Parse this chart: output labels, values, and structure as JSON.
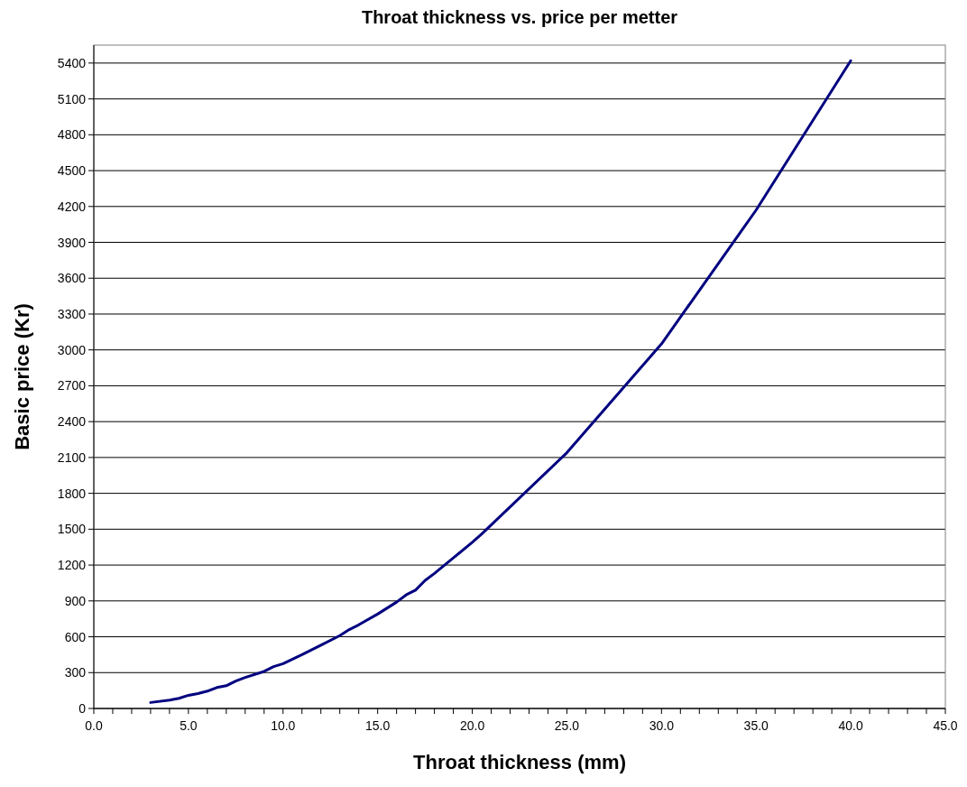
{
  "chart_data": {
    "type": "line",
    "title": "Throat thickness vs. price per metter",
    "xlabel": "Throat thickness (mm)",
    "ylabel": "Basic price (Kr)",
    "x": [
      3,
      4,
      4.5,
      5,
      5.5,
      6,
      6.5,
      7,
      7.5,
      8,
      9,
      9.5,
      10,
      11,
      12,
      13,
      13.5,
      14,
      15,
      16,
      16.5,
      17,
      17.5,
      18,
      19,
      20,
      20.5,
      25,
      30,
      35,
      40
    ],
    "series": [
      {
        "color": "#000080",
        "values": [
          50,
          70,
          85,
          110,
          125,
          145,
          175,
          190,
          230,
          260,
          310,
          350,
          375,
          450,
          530,
          610,
          660,
          700,
          790,
          890,
          950,
          990,
          1070,
          1130,
          1260,
          1390,
          1460,
          2140,
          3050,
          4170,
          5420
        ]
      }
    ],
    "xlim": [
      0,
      45
    ],
    "xticks": [
      {
        "value": 0,
        "label": "0.0"
      },
      {
        "value": 1,
        "label": null
      },
      {
        "value": 2,
        "label": null
      },
      {
        "value": 3,
        "label": null
      },
      {
        "value": 4,
        "label": null
      },
      {
        "value": 5,
        "label": "5.0"
      },
      {
        "value": 6,
        "label": null
      },
      {
        "value": 7,
        "label": null
      },
      {
        "value": 8,
        "label": null
      },
      {
        "value": 9,
        "label": null
      },
      {
        "value": 10,
        "label": "10.0"
      },
      {
        "value": 11,
        "label": null
      },
      {
        "value": 12,
        "label": null
      },
      {
        "value": 13,
        "label": null
      },
      {
        "value": 14,
        "label": null
      },
      {
        "value": 15,
        "label": "15.0"
      },
      {
        "value": 16,
        "label": null
      },
      {
        "value": 17,
        "label": null
      },
      {
        "value": 18,
        "label": null
      },
      {
        "value": 19,
        "label": null
      },
      {
        "value": 20,
        "label": "20.0"
      },
      {
        "value": 21,
        "label": null
      },
      {
        "value": 22,
        "label": null
      },
      {
        "value": 23,
        "label": null
      },
      {
        "value": 24,
        "label": null
      },
      {
        "value": 25,
        "label": "25.0"
      },
      {
        "value": 26,
        "label": null
      },
      {
        "value": 27,
        "label": null
      },
      {
        "value": 28,
        "label": null
      },
      {
        "value": 29,
        "label": null
      },
      {
        "value": 30,
        "label": "30.0"
      },
      {
        "value": 31,
        "label": null
      },
      {
        "value": 32,
        "label": null
      },
      {
        "value": 33,
        "label": null
      },
      {
        "value": 34,
        "label": null
      },
      {
        "value": 35,
        "label": "35.0"
      },
      {
        "value": 36,
        "label": null
      },
      {
        "value": 37,
        "label": null
      },
      {
        "value": 38,
        "label": null
      },
      {
        "value": 39,
        "label": null
      },
      {
        "value": 40,
        "label": "40.0"
      },
      {
        "value": 41,
        "label": null
      },
      {
        "value": 42,
        "label": null
      },
      {
        "value": 43,
        "label": null
      },
      {
        "value": 44,
        "label": null
      },
      {
        "value": 45,
        "label": "45.0"
      }
    ],
    "ylim": [
      0,
      5550
    ],
    "yticks": [
      0,
      300,
      600,
      900,
      1200,
      1500,
      1800,
      2100,
      2400,
      2700,
      3000,
      3300,
      3600,
      3900,
      4200,
      4500,
      4800,
      5100,
      5400
    ],
    "grid": "y",
    "marker": "none",
    "line_style": "solid"
  }
}
